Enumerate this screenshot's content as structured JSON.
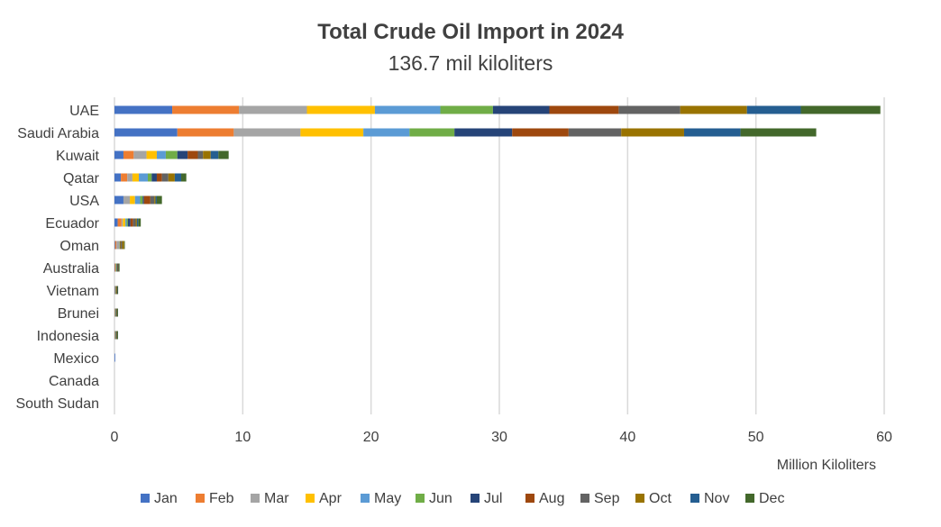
{
  "chart_data": {
    "type": "bar",
    "orientation": "horizontal",
    "stacked": true,
    "title": "Total Crude Oil Import in 2024",
    "subtitle": "136.7 mil kiloliters",
    "xlabel": "Million Kiloliters",
    "ylabel": "",
    "xlim": [
      0,
      60
    ],
    "xticks": [
      0,
      10,
      20,
      30,
      40,
      50,
      60
    ],
    "grid": true,
    "legend_position": "bottom",
    "categories": [
      "UAE",
      "Saudi Arabia",
      "Kuwait",
      "Qatar",
      "USA",
      "Ecuador",
      "Oman",
      "Australia",
      "Vietnam",
      "Brunei",
      "Indonesia",
      "Mexico",
      "Canada",
      "South Sudan"
    ],
    "series": [
      {
        "name": "Jan",
        "color": "#4472C4",
        "values": [
          4.5,
          4.9,
          0.7,
          0.5,
          0.7,
          0.25,
          0.05,
          0.03,
          0.03,
          0.02,
          0.02,
          0.05,
          0.0,
          0.0
        ]
      },
      {
        "name": "Feb",
        "color": "#ED7D31",
        "values": [
          5.2,
          4.4,
          0.8,
          0.5,
          0.0,
          0.3,
          0.1,
          0.04,
          0.02,
          0.02,
          0.02,
          0.0,
          0.0,
          0.0
        ]
      },
      {
        "name": "Mar",
        "color": "#A5A5A5",
        "values": [
          5.3,
          5.2,
          1.0,
          0.4,
          0.5,
          0.1,
          0.25,
          0.03,
          0.02,
          0.02,
          0.02,
          0.0,
          0.0,
          0.0
        ]
      },
      {
        "name": "Apr",
        "color": "#FFC000",
        "values": [
          5.3,
          4.9,
          0.8,
          0.5,
          0.4,
          0.2,
          0.0,
          0.03,
          0.02,
          0.02,
          0.02,
          0.0,
          0.0,
          0.0
        ]
      },
      {
        "name": "May",
        "color": "#5B9BD5",
        "values": [
          5.1,
          3.6,
          0.7,
          0.7,
          0.4,
          0.1,
          0.0,
          0.03,
          0.02,
          0.02,
          0.02,
          0.0,
          0.0,
          0.0
        ]
      },
      {
        "name": "Jun",
        "color": "#70AD47",
        "values": [
          4.1,
          3.5,
          0.9,
          0.3,
          0.2,
          0.1,
          0.05,
          0.03,
          0.02,
          0.02,
          0.02,
          0.0,
          0.0,
          0.0
        ]
      },
      {
        "name": "Jul",
        "color": "#264478",
        "values": [
          4.4,
          4.5,
          0.8,
          0.4,
          0.1,
          0.2,
          0.0,
          0.03,
          0.02,
          0.02,
          0.02,
          0.0,
          0.0,
          0.0
        ]
      },
      {
        "name": "Aug",
        "color": "#9E480E",
        "values": [
          5.4,
          4.4,
          0.8,
          0.4,
          0.5,
          0.2,
          0.05,
          0.03,
          0.02,
          0.02,
          0.02,
          0.0,
          0.0,
          0.0
        ]
      },
      {
        "name": "Sep",
        "color": "#636363",
        "values": [
          4.8,
          4.1,
          0.4,
          0.5,
          0.3,
          0.2,
          0.1,
          0.03,
          0.02,
          0.02,
          0.02,
          0.0,
          0.0,
          0.0
        ]
      },
      {
        "name": "Oct",
        "color": "#997300",
        "values": [
          5.2,
          4.9,
          0.6,
          0.5,
          0.1,
          0.1,
          0.15,
          0.03,
          0.02,
          0.02,
          0.02,
          0.0,
          0.0,
          0.0
        ]
      },
      {
        "name": "Nov",
        "color": "#255E91",
        "values": [
          4.2,
          4.4,
          0.6,
          0.5,
          0.1,
          0.1,
          0.0,
          0.03,
          0.02,
          0.02,
          0.02,
          0.0,
          0.0,
          0.0
        ]
      },
      {
        "name": "Dec",
        "color": "#43682B",
        "values": [
          6.2,
          5.9,
          0.8,
          0.4,
          0.4,
          0.2,
          0.05,
          0.03,
          0.02,
          0.02,
          0.02,
          0.0,
          0.0,
          0.0
        ]
      }
    ]
  }
}
